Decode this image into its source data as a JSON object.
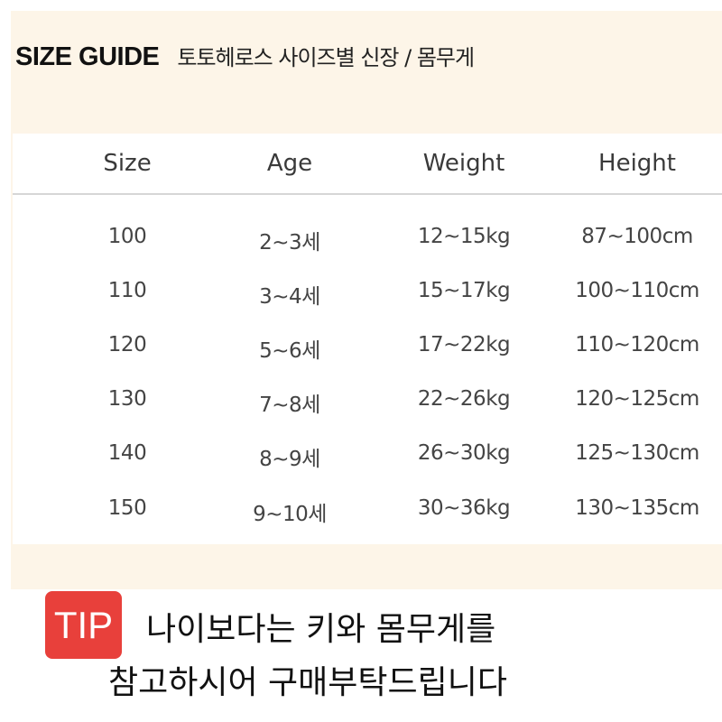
{
  "title": {
    "main": "SIZE GUIDE",
    "sub": "토토헤로스 사이즈별 신장 / 몸무게"
  },
  "table": {
    "headers": [
      "Size",
      "Age",
      "Weight",
      "Height"
    ],
    "rows": [
      [
        "100",
        "2~3세",
        "12~15kg",
        "87~100cm"
      ],
      [
        "110",
        "3~4세",
        "15~17kg",
        "100~110cm"
      ],
      [
        "120",
        "5~6세",
        "17~22kg",
        "110~120cm"
      ],
      [
        "130",
        "7~8세",
        "22~26kg",
        "120~125cm"
      ],
      [
        "140",
        "8~9세",
        "26~30kg",
        "125~130cm"
      ],
      [
        "150",
        "9~10세",
        "30~36kg",
        "130~135cm"
      ]
    ]
  },
  "tip": {
    "badge": "TIP",
    "line1": "나이보다는 키와 몸무게를",
    "line2": "참고하시어 구매부탁드립니다",
    "badge_color": "#e8403b"
  },
  "colors": {
    "panel": "#fdf5e8"
  }
}
